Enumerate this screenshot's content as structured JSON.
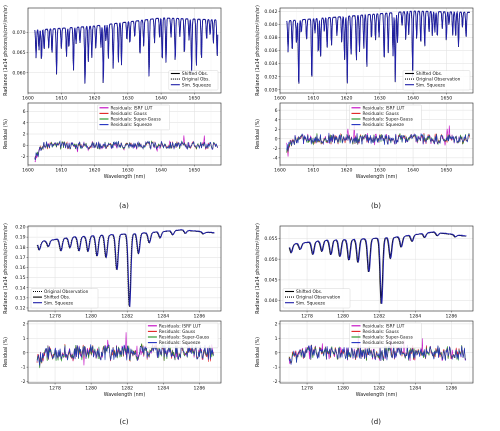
{
  "chart_data": [
    {
      "panel": "a",
      "caption": "(a)",
      "type": "line",
      "top": {
        "ylabel": "Radiance (1e14 photons/s/cm²/nm/sr)",
        "xlim": [
          1600,
          1658
        ],
        "ylim": [
          0.055,
          0.076
        ],
        "xticks": [
          1600,
          1610,
          1620,
          1630,
          1640,
          1650
        ],
        "yticks": [
          0.06,
          0.065,
          0.07
        ],
        "ytick_labels": [
          "0.060",
          "0.065",
          "0.070"
        ],
        "legend_position": "lower-right",
        "series": [
          {
            "name": "Shifted Obs.",
            "color": "#000000",
            "style": "solid"
          },
          {
            "name": "Original Obs.",
            "color": "#000000",
            "style": "dotted"
          },
          {
            "name": "Sim. Squeeze",
            "color": "#1f1fa8",
            "style": "solid"
          }
        ],
        "profile": {
          "x_range": [
            1602,
            1657
          ],
          "continuum": [
            [
              1602,
              0.0705
            ],
            [
              1620,
              0.0715
            ],
            [
              1640,
              0.0735
            ],
            [
              1657,
              0.073
            ]
          ],
          "line_depth_range": [
            0.004,
            0.016
          ],
          "line_spacing": 1.1
        }
      },
      "bottom": {
        "ylabel": "Residual (%)",
        "xlabel": "Wavelength (nm)",
        "xlim": [
          1600,
          1658
        ],
        "ylim": [
          -3.5,
          7.5
        ],
        "xticks": [
          1600,
          1610,
          1620,
          1630,
          1640,
          1650
        ],
        "yticks": [
          -2,
          0,
          2,
          4,
          6
        ],
        "legend_position": "top-center",
        "series": [
          {
            "name": "Residuals: ISRF LUT",
            "color": "#c000c0"
          },
          {
            "name": "Residuals: Gauss",
            "color": "#e02020"
          },
          {
            "name": "Residuals: Super-Gauss",
            "color": "#209020"
          },
          {
            "name": "Residuals: Squeeze",
            "color": "#2030c0"
          }
        ],
        "profile": {
          "x_range": [
            1602,
            1657
          ],
          "amplitude": 0.6,
          "early_dip": -2.5
        }
      }
    },
    {
      "panel": "b",
      "caption": "(b)",
      "type": "line",
      "top": {
        "ylabel": "Radiance (1e14 photons/s/cm²/nm/sr)",
        "xlim": [
          1600,
          1658
        ],
        "ylim": [
          0.0295,
          0.0425
        ],
        "xticks": [
          1600,
          1610,
          1620,
          1630,
          1640,
          1650
        ],
        "yticks": [
          0.03,
          0.032,
          0.034,
          0.036,
          0.038,
          0.04,
          0.042
        ],
        "ytick_labels": [
          "0.030",
          "0.032",
          "0.034",
          "0.036",
          "0.038",
          "0.040",
          "0.042"
        ],
        "legend_position": "lower-right",
        "series": [
          {
            "name": "Shifted Obs.",
            "color": "#000000",
            "style": "solid"
          },
          {
            "name": "Original Observation",
            "color": "#000000",
            "style": "dotted"
          },
          {
            "name": "Sim. Squeeze",
            "color": "#1f1fa8",
            "style": "solid"
          }
        ],
        "profile": {
          "x_range": [
            1602,
            1657
          ],
          "continuum": [
            [
              1602,
              0.0405
            ],
            [
              1620,
              0.0412
            ],
            [
              1640,
              0.042
            ],
            [
              1657,
              0.0418
            ]
          ],
          "line_depth_range": [
            0.002,
            0.011
          ],
          "line_spacing": 1.1
        }
      },
      "bottom": {
        "ylabel": "Residual (%)",
        "xlabel": "Wavelength (nm)",
        "xlim": [
          1600,
          1658
        ],
        "ylim": [
          -5.5,
          7.5
        ],
        "xticks": [
          1600,
          1610,
          1620,
          1630,
          1640,
          1650
        ],
        "yticks": [
          -4,
          -2,
          0,
          2,
          4,
          6
        ],
        "legend_position": "top-center",
        "series": [
          {
            "name": "Residuals: ISRF LUT",
            "color": "#c000c0"
          },
          {
            "name": "Residuals: Gauss",
            "color": "#e02020"
          },
          {
            "name": "Residuals: Super-Gauss",
            "color": "#209020"
          },
          {
            "name": "Residuals: Squeeze",
            "color": "#2030c0"
          }
        ],
        "profile": {
          "x_range": [
            1602,
            1657
          ],
          "amplitude": 1.0,
          "early_dip": -3.5
        }
      }
    },
    {
      "panel": "c",
      "caption": "(c)",
      "type": "line",
      "top": {
        "ylabel": "Radiance (1e14 photons/s/cm²/nm/sr)",
        "xlim": [
          1276.5,
          1287.2
        ],
        "ylim": [
          0.117,
          0.201
        ],
        "xticks": [
          1278,
          1280,
          1282,
          1284,
          1286
        ],
        "yticks": [
          0.12,
          0.13,
          0.14,
          0.15,
          0.16,
          0.17,
          0.18,
          0.19,
          0.2
        ],
        "ytick_labels": [
          "0.12",
          "0.13",
          "0.14",
          "0.15",
          "0.16",
          "0.17",
          "0.18",
          "0.19",
          "0.20"
        ],
        "legend_position": "lower-left",
        "series": [
          {
            "name": "Original Observation",
            "color": "#000000",
            "style": "dotted"
          },
          {
            "name": "Shifted Obs.",
            "color": "#000000",
            "style": "solid"
          },
          {
            "name": "Sim. Squeeze",
            "color": "#1f1fa8",
            "style": "solid"
          }
        ],
        "profile": {
          "x_range": [
            1277,
            1286.8
          ],
          "continuum": [
            [
              1277,
              0.185
            ],
            [
              1279,
              0.19
            ],
            [
              1281,
              0.192
            ],
            [
              1283,
              0.194
            ],
            [
              1285,
              0.197
            ],
            [
              1286.8,
              0.194
            ]
          ],
          "lines": [
            [
              1277.1,
              0.008
            ],
            [
              1277.6,
              0.006
            ],
            [
              1278.3,
              0.012
            ],
            [
              1278.8,
              0.01
            ],
            [
              1279.3,
              0.014
            ],
            [
              1279.8,
              0.015
            ],
            [
              1280.3,
              0.02
            ],
            [
              1280.8,
              0.022
            ],
            [
              1281.4,
              0.035
            ],
            [
              1282.1,
              0.072
            ],
            [
              1282.6,
              0.02
            ],
            [
              1283.2,
              0.01
            ],
            [
              1283.8,
              0.006
            ],
            [
              1284.5,
              0.004
            ],
            [
              1285.2,
              0.003
            ],
            [
              1286.2,
              0.002
            ]
          ]
        }
      },
      "bottom": {
        "ylabel": "Residual (%)",
        "xlabel": "Wavelength (nm)",
        "xlim": [
          1276.5,
          1287.2
        ],
        "ylim": [
          -2.1,
          2.2
        ],
        "xticks": [
          1278,
          1280,
          1282,
          1284,
          1286
        ],
        "yticks": [
          -2,
          -1,
          0,
          1,
          2
        ],
        "legend_position": "top-right",
        "series": [
          {
            "name": "Residuals: ISRF LUT",
            "color": "#c000c0"
          },
          {
            "name": "Residuals: Gauss",
            "color": "#e02020"
          },
          {
            "name": "Residuals: Super-Gauss",
            "color": "#209020"
          },
          {
            "name": "Residuals: Squeeze",
            "color": "#2030c0"
          }
        ],
        "profile": {
          "x_range": [
            1277,
            1286.8
          ],
          "amplitude": 0.5,
          "early_dip": -0.9
        }
      }
    },
    {
      "panel": "d",
      "caption": "(d)",
      "type": "line",
      "top": {
        "ylabel": "Radiance (1e14 photons/s/cm²/nm/sr)",
        "xlim": [
          1276.5,
          1287.2
        ],
        "ylim": [
          0.0375,
          0.058
        ],
        "xticks": [
          1278,
          1280,
          1282,
          1284,
          1286
        ],
        "yticks": [
          0.04,
          0.045,
          0.05,
          0.055
        ],
        "ytick_labels": [
          "0.040",
          "0.045",
          "0.050",
          "0.055"
        ],
        "legend_position": "lower-left",
        "series": [
          {
            "name": "Shifted Obs.",
            "color": "#000000",
            "style": "solid"
          },
          {
            "name": "Original Observation",
            "color": "#000000",
            "style": "dotted"
          },
          {
            "name": "Sim. Squeeze",
            "color": "#1f1fa8",
            "style": "solid"
          }
        ],
        "profile": {
          "x_range": [
            1277,
            1286.8
          ],
          "continuum": [
            [
              1277,
              0.0535
            ],
            [
              1279,
              0.0545
            ],
            [
              1281,
              0.0548
            ],
            [
              1283,
              0.0553
            ],
            [
              1285,
              0.0565
            ],
            [
              1286.8,
              0.0555
            ]
          ],
          "lines": [
            [
              1277.1,
              0.002
            ],
            [
              1277.6,
              0.0015
            ],
            [
              1278.3,
              0.003
            ],
            [
              1278.8,
              0.0025
            ],
            [
              1279.3,
              0.0035
            ],
            [
              1279.8,
              0.004
            ],
            [
              1280.3,
              0.005
            ],
            [
              1280.8,
              0.0055
            ],
            [
              1281.4,
              0.008
            ],
            [
              1282.1,
              0.016
            ],
            [
              1282.6,
              0.005
            ],
            [
              1283.2,
              0.0025
            ],
            [
              1283.8,
              0.0015
            ],
            [
              1284.5,
              0.001
            ],
            [
              1285.2,
              0.0008
            ],
            [
              1286.2,
              0.0005
            ]
          ]
        }
      },
      "bottom": {
        "ylabel": "Residual (%)",
        "xlabel": "Wavelength (nm)",
        "xlim": [
          1276.5,
          1287.2
        ],
        "ylim": [
          -2.1,
          2.2
        ],
        "xticks": [
          1278,
          1280,
          1282,
          1284,
          1286
        ],
        "yticks": [
          -2,
          -1,
          0,
          1,
          2
        ],
        "legend_position": "top-center",
        "series": [
          {
            "name": "Residuals: ISRF LUT",
            "color": "#c000c0"
          },
          {
            "name": "Residuals: Gauss",
            "color": "#e02020"
          },
          {
            "name": "Residuals: Super-Gauss",
            "color": "#209020"
          },
          {
            "name": "Residuals: Squeeze",
            "color": "#2030c0"
          }
        ],
        "profile": {
          "x_range": [
            1277,
            1286.8
          ],
          "amplitude": 0.45,
          "early_dip": -1.0
        }
      }
    }
  ]
}
